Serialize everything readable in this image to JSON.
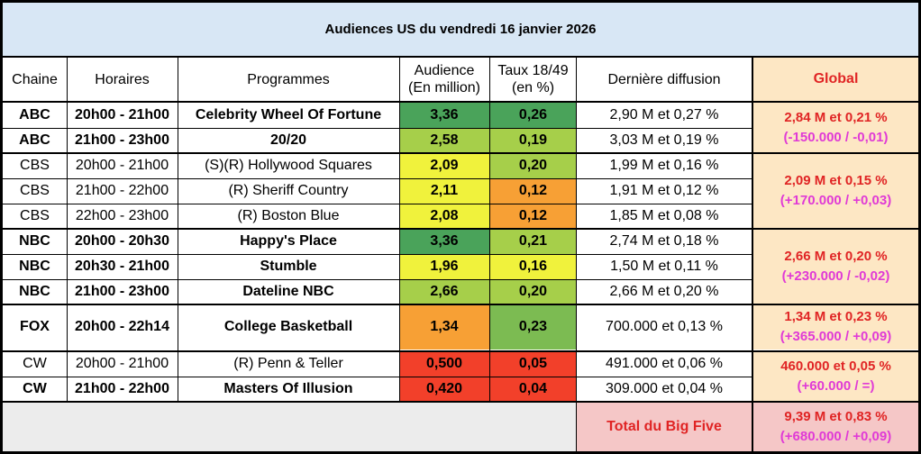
{
  "title": "Audiences US du vendredi 16 janvier 2026",
  "headers": {
    "chaine": "Chaine",
    "horaires": "Horaires",
    "programmes": "Programmes",
    "audience_l1": "Audience",
    "audience_l2": "(En million)",
    "taux_l1": "Taux 18/49",
    "taux_l2": "(en %)",
    "derniere": "Dernière diffusion",
    "global": "Global"
  },
  "rows": [
    {
      "chaine": "ABC",
      "horaires": "20h00 - 21h00",
      "programme": "Celebrity Wheel Of Fortune",
      "audience": "3,36",
      "taux": "0,26",
      "derniere": "2,90 M et 0,27 %",
      "bold": true,
      "audience_color": "#4aa35a",
      "taux_color": "#4aa35a"
    },
    {
      "chaine": "ABC",
      "horaires": "21h00 - 23h00",
      "programme": "20/20",
      "audience": "2,58",
      "taux": "0,19",
      "derniere": "3,03 M et 0,19 %",
      "bold": true,
      "audience_color": "#a6cf4a",
      "taux_color": "#a6cf4a"
    },
    {
      "chaine": "CBS",
      "horaires": "20h00 - 21h00",
      "programme": "(S)(R) Hollywood Squares",
      "audience": "2,09",
      "taux": "0,20",
      "derniere": "1,99 M et 0,16 %",
      "bold": false,
      "audience_color": "#f0f23c",
      "taux_color": "#a6cf4a"
    },
    {
      "chaine": "CBS",
      "horaires": "21h00 - 22h00",
      "programme": "(R) Sheriff Country",
      "audience": "2,11",
      "taux": "0,12",
      "derniere": "1,91 M et 0,12 %",
      "bold": false,
      "audience_color": "#f0f23c",
      "taux_color": "#f7a035"
    },
    {
      "chaine": "CBS",
      "horaires": "22h00 - 23h00",
      "programme": "(R) Boston Blue",
      "audience": "2,08",
      "taux": "0,12",
      "derniere": "1,85 M et 0,08 %",
      "bold": false,
      "audience_color": "#f0f23c",
      "taux_color": "#f7a035"
    },
    {
      "chaine": "NBC",
      "horaires": "20h00 - 20h30",
      "programme": "Happy's Place",
      "audience": "3,36",
      "taux": "0,21",
      "derniere": "2,74 M et 0,18 %",
      "bold": true,
      "audience_color": "#4aa35a",
      "taux_color": "#a6cf4a"
    },
    {
      "chaine": "NBC",
      "horaires": "20h30 - 21h00",
      "programme": "Stumble",
      "audience": "1,96",
      "taux": "0,16",
      "derniere": "1,50 M et 0,11 %",
      "bold": true,
      "audience_color": "#f0f23c",
      "taux_color": "#f0f23c"
    },
    {
      "chaine": "NBC",
      "horaires": "21h00 - 23h00",
      "programme": "Dateline NBC",
      "audience": "2,66",
      "taux": "0,20",
      "derniere": "2,66 M et 0,20 %",
      "bold": true,
      "audience_color": "#a6cf4a",
      "taux_color": "#a6cf4a"
    },
    {
      "chaine": "FOX",
      "horaires": "20h00 - 22h14",
      "programme": "College Basketball",
      "audience": "1,34",
      "taux": "0,23",
      "derniere": "700.000 et 0,13 %",
      "bold": true,
      "audience_color": "#f7a035",
      "taux_color": "#7cbb52"
    },
    {
      "chaine": "CW",
      "horaires": "20h00 - 21h00",
      "programme": "(R) Penn & Teller",
      "audience": "0,500",
      "taux": "0,05",
      "derniere": "491.000 et 0,06 %",
      "bold": false,
      "audience_color": "#f2402a",
      "taux_color": "#f2402a"
    },
    {
      "chaine": "CW",
      "horaires": "21h00 - 22h00",
      "programme": "Masters Of Illusion",
      "audience": "0,420",
      "taux": "0,04",
      "derniere": "309.000 et 0,04 %",
      "bold": true,
      "audience_color": "#f2402a",
      "taux_color": "#f2402a"
    }
  ],
  "global": [
    {
      "line1": "2,84 M et 0,21 %",
      "line2": "(-150.000 / -0,01)"
    },
    {
      "line1": "2,09 M et 0,15 %",
      "line2": "(+170.000 / +0,03)"
    },
    {
      "line1": "2,66 M et 0,20 %",
      "line2": "(+230.000 / -0,02)"
    },
    {
      "line1": "1,34 M et 0,23 %",
      "line2": "(+365.000 / +0,09)"
    },
    {
      "line1": "460.000 et 0,05 %",
      "line2": "(+60.000 / =)"
    }
  ],
  "total": {
    "label": "Total du Big Five",
    "line1": "9,39 M et 0,83 %",
    "line2": "(+680.000 / +0,09)"
  }
}
